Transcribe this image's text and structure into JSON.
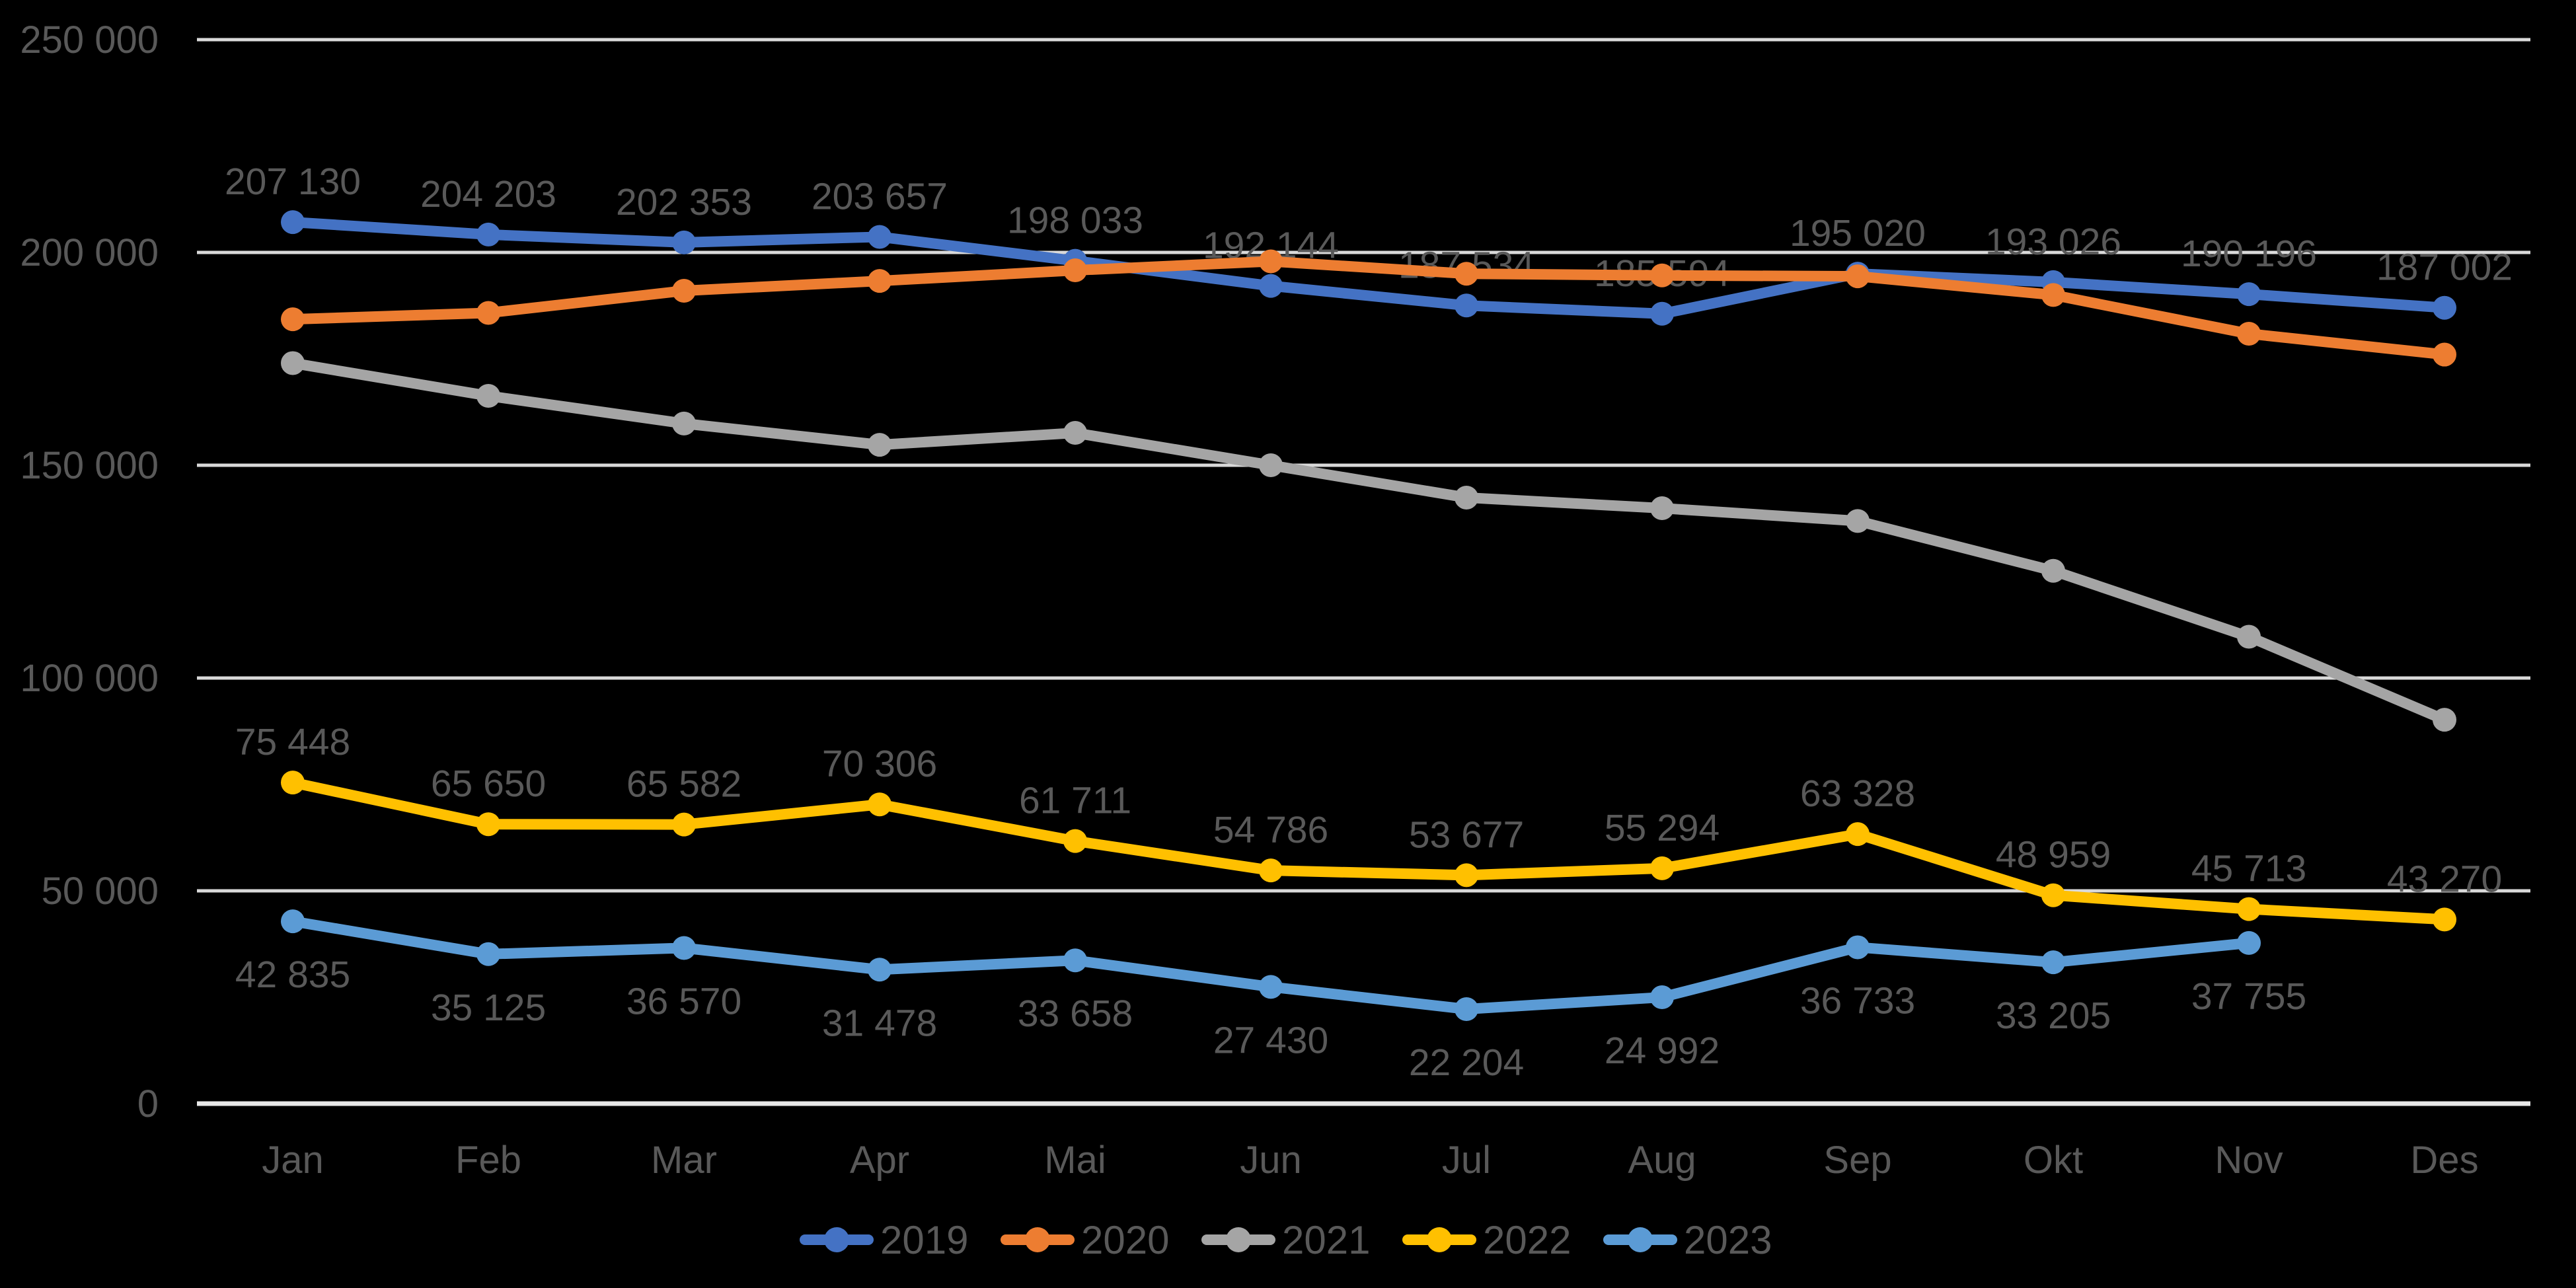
{
  "chart_data": {
    "type": "line",
    "title": "",
    "xlabel": "",
    "ylabel": "",
    "background_color": "#000000",
    "text_color": "#595959",
    "gridline_color": "#D9D9D9",
    "axis_line_color": "#E8E8E8",
    "grid": true,
    "legend_position": "bottom",
    "y_axis": {
      "min": 0,
      "max": 250000,
      "step": 50000,
      "tick_labels": [
        "0",
        "50 000",
        "100 000",
        "150 000",
        "200 000",
        "250 000"
      ]
    },
    "categories": [
      "Jan",
      "Feb",
      "Mar",
      "Apr",
      "Mai",
      "Jun",
      "Jul",
      "Aug",
      "Sep",
      "Okt",
      "Nov",
      "Des"
    ],
    "series": [
      {
        "name": "2019",
        "color": "#4472C4",
        "values": [
          207130,
          204203,
          202353,
          203657,
          198033,
          192144,
          187534,
          185594,
          195020,
          193026,
          190196,
          187002
        ],
        "data_labels_visible": true,
        "label_position": "above"
      },
      {
        "name": "2020",
        "color": "#ED7D31",
        "values": [
          184300,
          185800,
          191000,
          193300,
          195800,
          197900,
          195000,
          194600,
          194400,
          190000,
          180900,
          176000
        ],
        "data_labels_visible": false,
        "label_position": "none"
      },
      {
        "name": "2021",
        "color": "#A5A5A5",
        "values": [
          174000,
          166300,
          159800,
          154800,
          157600,
          150000,
          142400,
          139900,
          136900,
          125200,
          109700,
          90200
        ],
        "data_labels_visible": false,
        "label_position": "none"
      },
      {
        "name": "2022",
        "color": "#FFC000",
        "values": [
          75448,
          65650,
          65582,
          70306,
          61711,
          54786,
          53677,
          55294,
          63328,
          48959,
          45713,
          43270
        ],
        "data_labels_visible": true,
        "label_position": "above"
      },
      {
        "name": "2023",
        "color": "#5B9BD5",
        "values": [
          42835,
          35125,
          36570,
          31478,
          33658,
          27430,
          22204,
          24992,
          36733,
          33205,
          37755,
          null
        ],
        "data_labels_visible": true,
        "label_position": "below"
      }
    ],
    "legend": [
      {
        "label": "2019",
        "color": "#4472C4"
      },
      {
        "label": "2020",
        "color": "#ED7D31"
      },
      {
        "label": "2021",
        "color": "#A5A5A5"
      },
      {
        "label": "2022",
        "color": "#FFC000"
      },
      {
        "label": "2023",
        "color": "#5B9BD5"
      }
    ]
  }
}
